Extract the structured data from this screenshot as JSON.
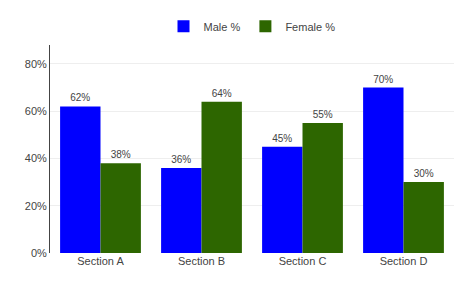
{
  "chart_data": {
    "type": "bar",
    "categories": [
      "Section A",
      "Section B",
      "Section C",
      "Section D"
    ],
    "series": [
      {
        "name": "Male %",
        "color": "#0000ff",
        "values": [
          0.62,
          0.36,
          0.45,
          0.7
        ],
        "value_labels": [
          "62%",
          "36%",
          "45%",
          "70%"
        ]
      },
      {
        "name": "Female %",
        "color": "#2d6600",
        "values": [
          0.38,
          0.64,
          0.55,
          0.3
        ],
        "value_labels": [
          "38%",
          "64%",
          "55%",
          "30%"
        ]
      }
    ],
    "ylim": [
      0,
      0.88
    ],
    "yticks": [
      {
        "value": 0.0,
        "label": "0%"
      },
      {
        "value": 0.2,
        "label": "20%"
      },
      {
        "value": 0.4,
        "label": "40%"
      },
      {
        "value": 0.6,
        "label": "60%"
      },
      {
        "value": 0.8,
        "label": "80%"
      }
    ],
    "grid": true,
    "legend": "top",
    "data_labels": true
  }
}
